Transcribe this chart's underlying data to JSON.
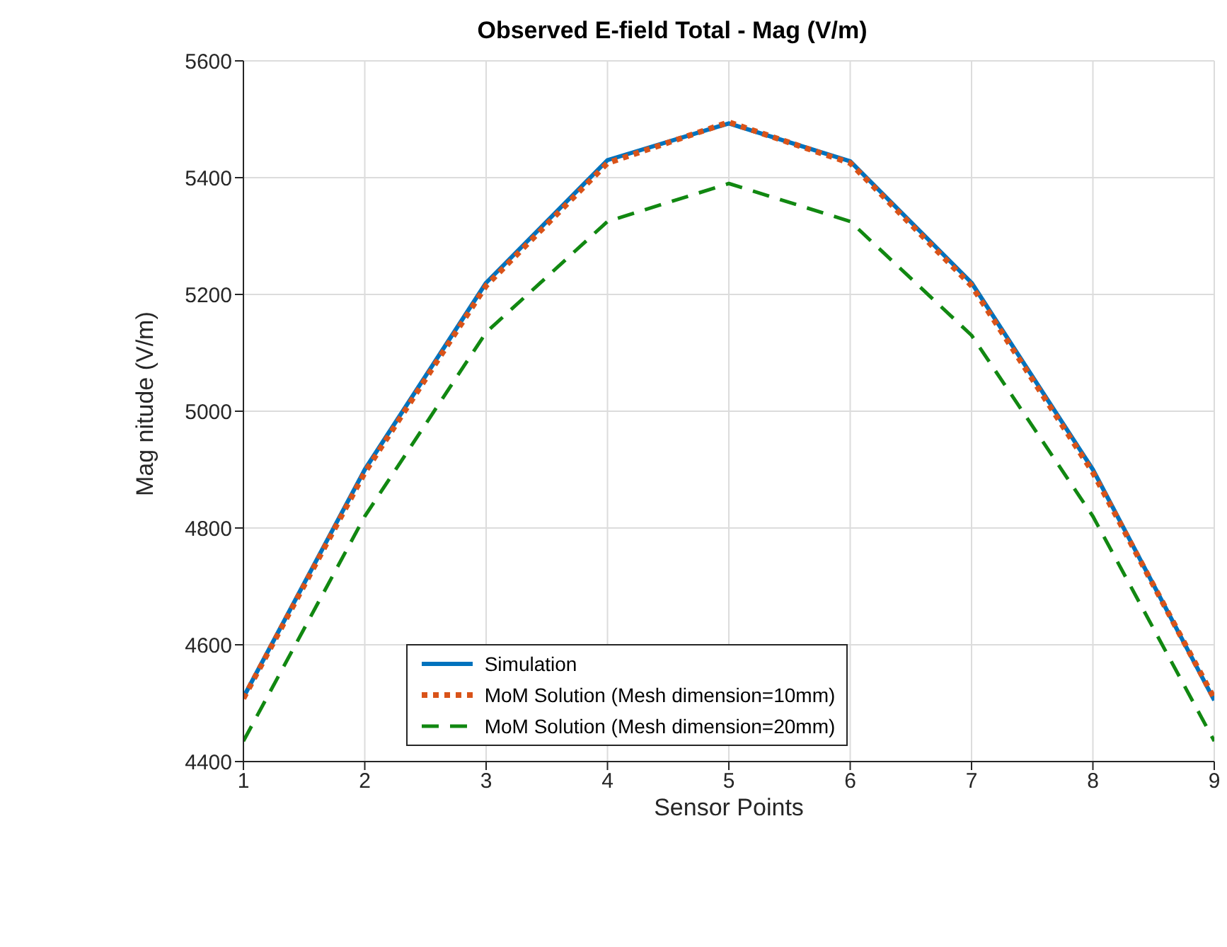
{
  "chart_data": {
    "type": "line",
    "title": "Observed E-field Total - Mag (V/m)",
    "xlabel": "Sensor Points",
    "ylabel": "Mag nitude (V/m)",
    "x": [
      1,
      2,
      3,
      4,
      5,
      6,
      7,
      8,
      9
    ],
    "series": [
      {
        "name": "Simulation",
        "color": "#0072bd",
        "line_style": "solid",
        "values": [
          4510,
          4900,
          5220,
          5430,
          5493,
          5428,
          5220,
          4900,
          4505
        ]
      },
      {
        "name": "MoM Solution (Mesh dimension=10mm)",
        "color": "#d95319",
        "line_style": "dotted",
        "values": [
          4508,
          4895,
          5215,
          5425,
          5495,
          5425,
          5215,
          4895,
          4508
        ]
      },
      {
        "name": "MoM Solution (Mesh dimension=20mm)",
        "color": "#118811",
        "line_style": "dashed",
        "values": [
          4435,
          4820,
          5135,
          5325,
          5390,
          5325,
          5130,
          4820,
          4435
        ]
      }
    ],
    "xlim": [
      1,
      9
    ],
    "xticks": [
      1,
      2,
      3,
      4,
      5,
      6,
      7,
      8,
      9
    ],
    "ylim": [
      4400,
      5600
    ],
    "yticks": [
      4400,
      4600,
      4800,
      5000,
      5200,
      5400,
      5600
    ],
    "grid": true,
    "legend": "bottom",
    "marker": "none"
  }
}
